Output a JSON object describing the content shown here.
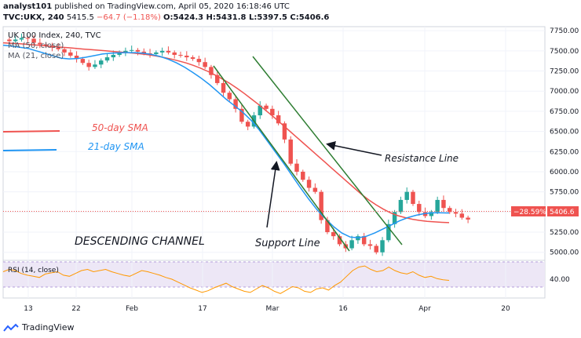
{
  "header": {
    "publisher": "analyst101",
    "published_text": "published on TradingView.com, April 05, 2020 16:18:46 UTC",
    "symbol_line": "TVC:UKX, 240",
    "last": "5415.5",
    "change": "−64.7 (−1.18%)",
    "ohlc": "O:5424.3 H:5431.8 L:5397.5 C:5406.6"
  },
  "chart_data": {
    "type": "candlestick",
    "title": "UK 100 Index, 240, TVC",
    "indicators": [
      "MA (50, close)",
      "MA (21, close)"
    ],
    "y_axis": {
      "ticks": [
        7750,
        7500,
        7250,
        7000,
        6750,
        6500,
        6250,
        6000,
        5750,
        5500,
        5250,
        5000
      ],
      "range": [
        4900,
        7800
      ]
    },
    "x_axis": {
      "tick_labels": [
        "13",
        "22",
        "Feb",
        "17",
        "Mar",
        "16",
        "Apr",
        "20"
      ]
    },
    "closes": [
      7620,
      7640,
      7660,
      7650,
      7600,
      7580,
      7560,
      7540,
      7520,
      7480,
      7440,
      7400,
      7350,
      7300,
      7330,
      7380,
      7420,
      7450,
      7480,
      7500,
      7510,
      7490,
      7470,
      7460,
      7480,
      7500,
      7480,
      7450,
      7440,
      7420,
      7400,
      7360,
      7300,
      7200,
      7100,
      6980,
      6900,
      6780,
      6620,
      6560,
      6700,
      6820,
      6780,
      6700,
      6600,
      6400,
      6100,
      6000,
      5900,
      5800,
      5750,
      5400,
      5250,
      5200,
      5100,
      5050,
      5150,
      5200,
      5100,
      5080,
      5000,
      5150,
      5350,
      5500,
      5650,
      5750,
      5600,
      5500,
      5450,
      5500,
      5650,
      5550,
      5500,
      5480,
      5430,
      5406.6
    ],
    "ma50": [
      7600,
      7595,
      7590,
      7583,
      7575,
      7568,
      7560,
      7553,
      7545,
      7538,
      7530,
      7522,
      7515,
      7508,
      7500,
      7492,
      7485,
      7478,
      7470,
      7460,
      7450,
      7435,
      7418,
      7398,
      7375,
      7350,
      7320,
      7285,
      7245,
      7200,
      7150,
      7095,
      7035,
      6970,
      6900,
      6830,
      6755,
      6680,
      6600,
      6520,
      6440,
      6360,
      6280,
      6200,
      6120,
      6040,
      5960,
      5880,
      5800,
      5720,
      5650,
      5590,
      5535,
      5490,
      5455,
      5430,
      5410,
      5395,
      5385,
      5378,
      5372,
      5368
    ],
    "ma21": [
      7570,
      7560,
      7545,
      7530,
      7500,
      7470,
      7440,
      7410,
      7400,
      7405,
      7420,
      7440,
      7460,
      7470,
      7475,
      7478,
      7478,
      7470,
      7455,
      7430,
      7395,
      7350,
      7295,
      7230,
      7160,
      7080,
      6990,
      6900,
      6820,
      6740,
      6640,
      6520,
      6380,
      6240,
      6100,
      5950,
      5800,
      5660,
      5530,
      5420,
      5320,
      5240,
      5190,
      5180,
      5200,
      5240,
      5290,
      5340,
      5390,
      5430,
      5460,
      5480,
      5490,
      5490,
      5488
    ],
    "last_price_tag": "5406.6",
    "pct_tag": "−28.59%",
    "annotations": {
      "sma50_label": "50-day SMA",
      "sma21_label": "21-day SMA",
      "resistance_label": "Resistance Line",
      "support_label": "Support Line",
      "channel_label": "DESCENDING CHANNEL"
    },
    "rsi": {
      "label": "RSI (14, close)",
      "tick": "40.00",
      "values": [
        58,
        62,
        60,
        55,
        52,
        50,
        48,
        54,
        56,
        58,
        52,
        50,
        55,
        60,
        62,
        58,
        60,
        62,
        58,
        55,
        52,
        50,
        55,
        60,
        58,
        55,
        52,
        48,
        45,
        40,
        35,
        30,
        26,
        22,
        25,
        30,
        34,
        38,
        32,
        28,
        24,
        22,
        28,
        34,
        30,
        24,
        20,
        26,
        32,
        30,
        24,
        22,
        28,
        30,
        26,
        34,
        40,
        50,
        60,
        66,
        68,
        62,
        58,
        60,
        66,
        60,
        56,
        54,
        58,
        52,
        48,
        50,
        46,
        44,
        43
      ]
    },
    "colors": {
      "up": "#26a69a",
      "down": "#ef5350",
      "ma50": "#ef5350",
      "ma21": "#2196f3",
      "channel": "#2e7d32",
      "rsi": "#ff9800",
      "rsi_band": "#ede7f6"
    },
    "grid": true
  },
  "footer": {
    "brand": "TradingView"
  }
}
